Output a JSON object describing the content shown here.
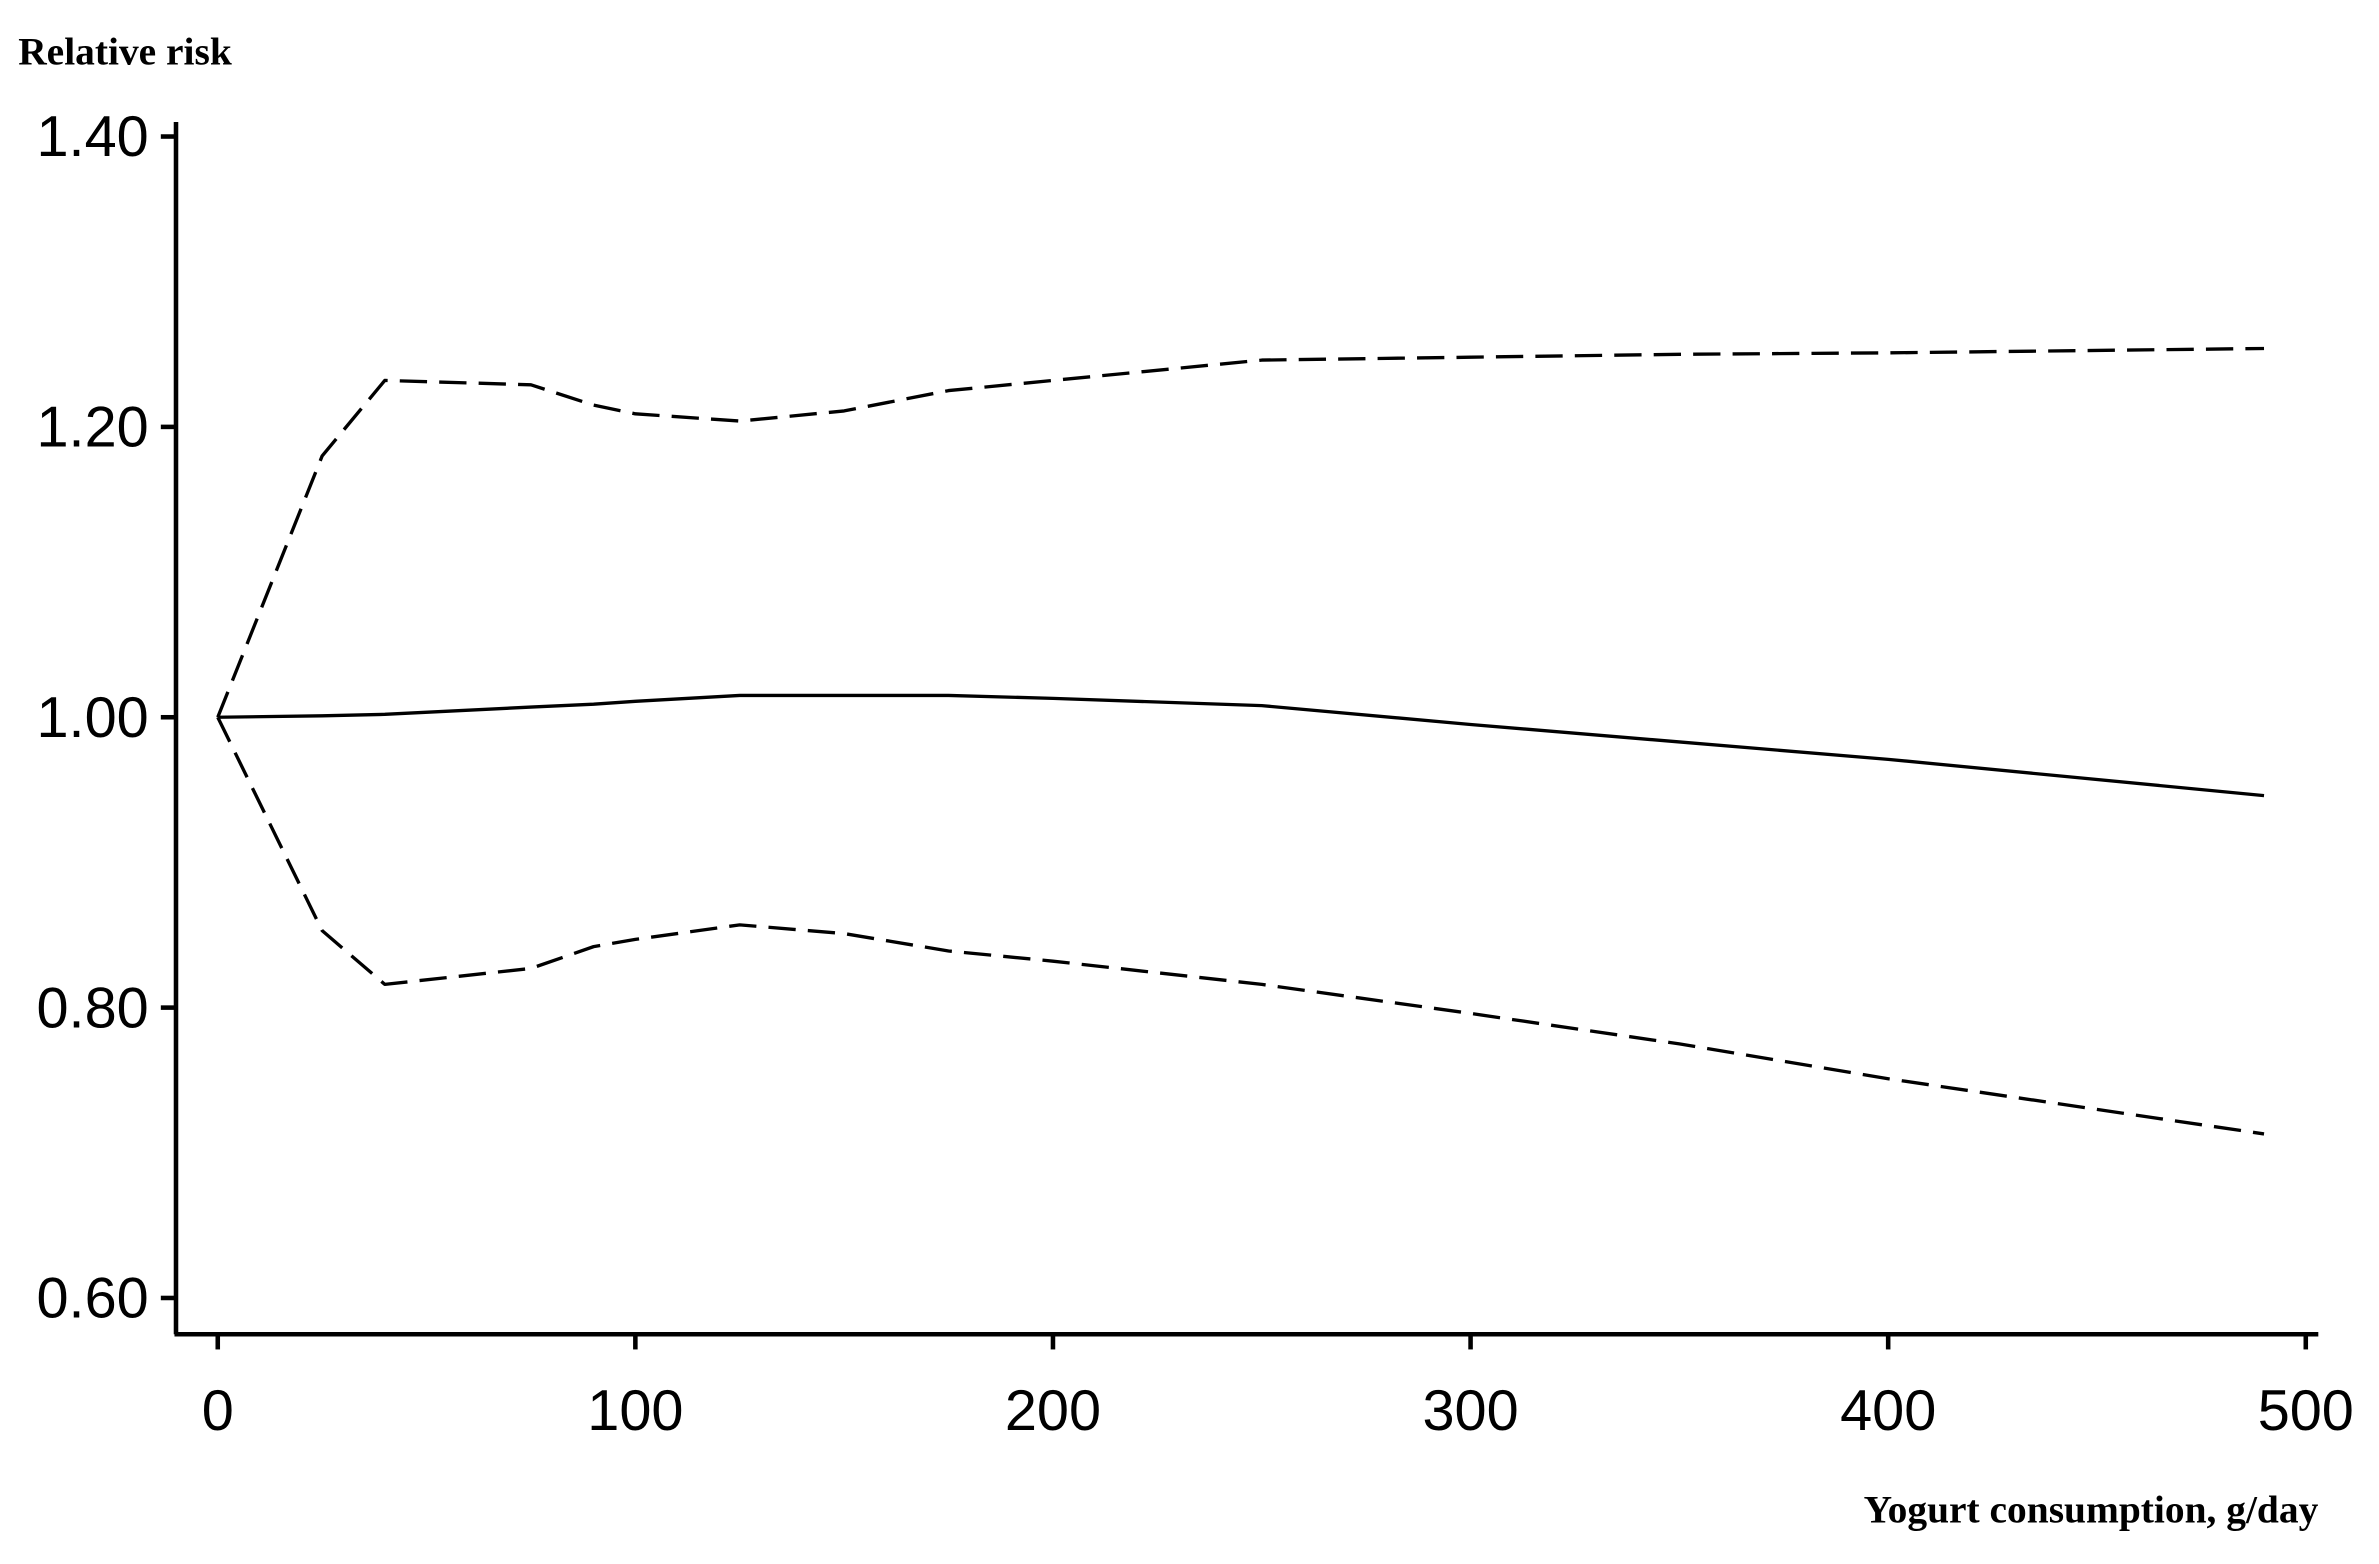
{
  "chart_data": {
    "type": "line",
    "y_label": "Relative risk",
    "x_label": "Yogurt consumption, g/day",
    "x": [
      0,
      25,
      40,
      75,
      90,
      100,
      125,
      150,
      175,
      200,
      250,
      300,
      350,
      400,
      490
    ],
    "series": [
      {
        "color": "#000000",
        "dashed": false,
        "values": [
          1.0,
          1.001,
          1.002,
          1.007,
          1.009,
          1.011,
          1.015,
          1.015,
          1.015,
          1.013,
          1.008,
          0.995,
          0.983,
          0.971,
          0.946
        ]
      },
      {
        "color": "#000000",
        "dashed": true,
        "values": [
          1.0,
          1.18,
          1.232,
          1.229,
          1.215,
          1.209,
          1.204,
          1.211,
          1.225,
          1.232,
          1.246,
          1.248,
          1.25,
          1.251,
          1.254
        ]
      },
      {
        "color": "#000000",
        "dashed": true,
        "values": [
          1.0,
          0.853,
          0.816,
          0.827,
          0.842,
          0.847,
          0.857,
          0.851,
          0.839,
          0.832,
          0.816,
          0.796,
          0.775,
          0.751,
          0.713
        ]
      }
    ],
    "xlim": [
      -10,
      503
    ],
    "ylim": [
      0.575,
      1.41
    ],
    "xticks": [
      0,
      100,
      200,
      300,
      400,
      500
    ],
    "yticks": [
      {
        "value": 0.6,
        "label": "0.60"
      },
      {
        "value": 0.8,
        "label": "0.80"
      },
      {
        "value": 1.0,
        "label": "1.00"
      },
      {
        "value": 1.2,
        "label": "1.20"
      },
      {
        "value": 1.4,
        "label": "1.40"
      }
    ],
    "grid": false
  }
}
